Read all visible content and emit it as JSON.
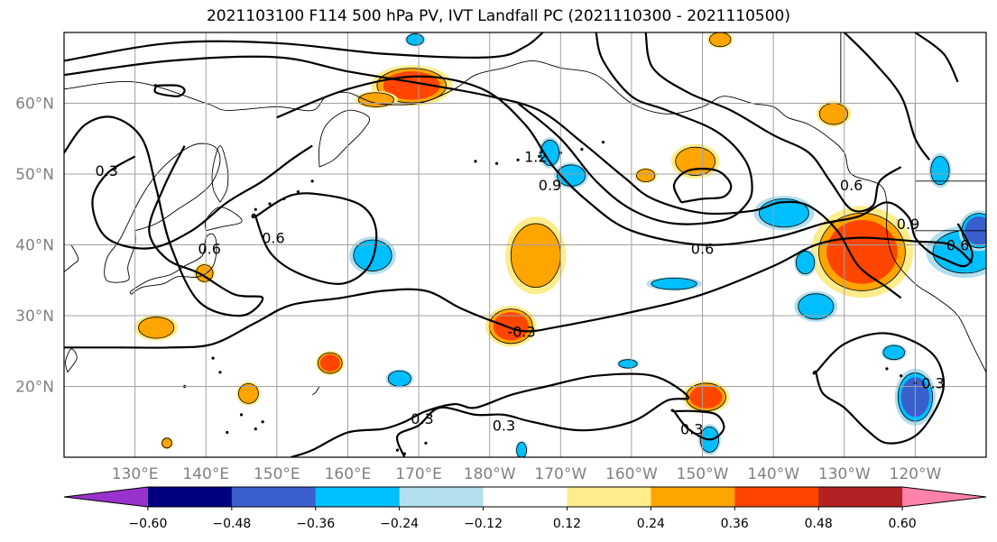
{
  "chart_data": {
    "type": "map-contour",
    "title": "2021103100 F114 500 hPa PV, IVT Landfall PC (2021110300 - 2021110500)",
    "lon_range": [
      120,
      250
    ],
    "lat_range": [
      10,
      70
    ],
    "lon_ticks": [
      130,
      140,
      150,
      160,
      170,
      180,
      190,
      200,
      210,
      220,
      230,
      240
    ],
    "lon_tick_labels": [
      "130°E",
      "140°E",
      "150°E",
      "160°E",
      "170°E",
      "180°W",
      "170°W",
      "160°W",
      "150°W",
      "140°W",
      "130°W",
      "120°W"
    ],
    "lat_ticks": [
      20,
      30,
      40,
      50,
      60
    ],
    "lat_tick_labels": [
      "20°N",
      "30°N",
      "40°N",
      "50°N",
      "60°N"
    ],
    "grid": true,
    "contour_labels": [
      {
        "text": "0.3",
        "lon": 126.0,
        "lat": 50.5
      },
      {
        "text": "0.6",
        "lon": 140.5,
        "lat": 39.5
      },
      {
        "text": "0.6",
        "lon": 149.5,
        "lat": 41.0
      },
      {
        "text": "0.9",
        "lon": 188.5,
        "lat": 48.5
      },
      {
        "text": "1.2",
        "lon": 186.5,
        "lat": 52.5
      },
      {
        "text": "0.6",
        "lon": 210.0,
        "lat": 39.5
      },
      {
        "text": "0.6",
        "lon": 231.0,
        "lat": 48.5
      },
      {
        "text": "0.9",
        "lon": 239.0,
        "lat": 43.0
      },
      {
        "text": "0.6",
        "lon": 246.0,
        "lat": 40.0
      },
      {
        "text": "-0.3",
        "lon": 184.5,
        "lat": 27.8
      },
      {
        "text": "0.3",
        "lon": 170.5,
        "lat": 15.5
      },
      {
        "text": "0.3",
        "lon": 182.0,
        "lat": 14.5
      },
      {
        "text": "0.3",
        "lon": 208.5,
        "lat": 14.0
      },
      {
        "text": "0.3",
        "lon": 242.5,
        "lat": 20.5
      }
    ],
    "filled_regions": [
      {
        "lon": 169.0,
        "lat": 62.5,
        "rx": 4.0,
        "ry": 2.0,
        "value": 0.36
      },
      {
        "lon": 164.0,
        "lat": 60.5,
        "rx": 2.5,
        "ry": 1.0,
        "value": 0.24
      },
      {
        "lon": 186.5,
        "lat": 38.5,
        "rx": 3.5,
        "ry": 4.5,
        "value": 0.24
      },
      {
        "lon": 183.0,
        "lat": 28.5,
        "rx": 2.5,
        "ry": 2.0,
        "value": 0.36
      },
      {
        "lon": 133.0,
        "lat": 28.3,
        "rx": 2.5,
        "ry": 1.5,
        "value": 0.24
      },
      {
        "lon": 157.5,
        "lat": 23.3,
        "rx": 1.4,
        "ry": 1.2,
        "value": 0.36
      },
      {
        "lon": 146.0,
        "lat": 19.0,
        "rx": 1.4,
        "ry": 1.4,
        "value": 0.24
      },
      {
        "lon": 210.5,
        "lat": 18.5,
        "rx": 2.3,
        "ry": 1.6,
        "value": 0.36
      },
      {
        "lon": 202.0,
        "lat": 49.8,
        "rx": 1.3,
        "ry": 0.9,
        "value": 0.24
      },
      {
        "lon": 209.0,
        "lat": 51.8,
        "rx": 2.8,
        "ry": 2.0,
        "value": 0.24
      },
      {
        "lon": 228.5,
        "lat": 58.5,
        "rx": 2.0,
        "ry": 1.5,
        "value": 0.24
      },
      {
        "lon": 212.5,
        "lat": 69.0,
        "rx": 1.5,
        "ry": 1.0,
        "value": 0.24
      },
      {
        "lon": 139.8,
        "lat": 36.0,
        "rx": 1.2,
        "ry": 1.2,
        "value": 0.24
      },
      {
        "lon": 134.5,
        "lat": 12.0,
        "rx": 0.7,
        "ry": 0.7,
        "value": 0.24
      },
      {
        "lon": 232.5,
        "lat": 39.0,
        "rx": 5.0,
        "ry": 4.5,
        "value": 0.36
      },
      {
        "lon": 188.5,
        "lat": 53.0,
        "rx": 1.3,
        "ry": 1.8,
        "value": -0.24
      },
      {
        "lon": 191.5,
        "lat": 49.8,
        "rx": 2.0,
        "ry": 1.5,
        "value": -0.24
      },
      {
        "lon": 221.5,
        "lat": 44.5,
        "rx": 3.5,
        "ry": 2.0,
        "value": -0.24
      },
      {
        "lon": 163.5,
        "lat": 38.5,
        "rx": 2.7,
        "ry": 2.2,
        "value": -0.24
      },
      {
        "lon": 206.0,
        "lat": 34.5,
        "rx": 3.2,
        "ry": 0.8,
        "value": -0.24
      },
      {
        "lon": 224.5,
        "lat": 37.5,
        "rx": 1.3,
        "ry": 1.6,
        "value": -0.24
      },
      {
        "lon": 226.0,
        "lat": 31.3,
        "rx": 2.5,
        "ry": 1.8,
        "value": -0.24
      },
      {
        "lon": 167.3,
        "lat": 21.1,
        "rx": 1.6,
        "ry": 1.1,
        "value": -0.24
      },
      {
        "lon": 237.0,
        "lat": 24.8,
        "rx": 1.5,
        "ry": 1.0,
        "value": -0.24
      },
      {
        "lon": 247.0,
        "lat": 39.0,
        "rx": 4.5,
        "ry": 3.0,
        "value": -0.24
      },
      {
        "lon": 249.0,
        "lat": 42.0,
        "rx": 2.0,
        "ry": 2.0,
        "value": -0.36
      },
      {
        "lon": 243.5,
        "lat": 50.5,
        "rx": 1.3,
        "ry": 2.0,
        "value": -0.24
      },
      {
        "lon": 240.0,
        "lat": 18.5,
        "rx": 2.0,
        "ry": 2.8,
        "value": -0.36
      },
      {
        "lon": 211.0,
        "lat": 12.5,
        "rx": 1.3,
        "ry": 1.8,
        "value": -0.24
      },
      {
        "lon": 199.5,
        "lat": 23.2,
        "rx": 1.3,
        "ry": 0.6,
        "value": -0.24
      },
      {
        "lon": 169.5,
        "lat": 69.0,
        "rx": 1.2,
        "ry": 0.8,
        "value": -0.24
      },
      {
        "lon": 184.5,
        "lat": 11.0,
        "rx": 0.7,
        "ry": 1.1,
        "value": -0.24
      }
    ],
    "colorbar": {
      "ticks": [
        -0.6,
        -0.48,
        -0.36,
        -0.24,
        -0.12,
        0.12,
        0.24,
        0.36,
        0.48,
        0.6
      ],
      "tick_labels": [
        "−0.60",
        "−0.48",
        "−0.36",
        "−0.24",
        "−0.12",
        "0.12",
        "0.24",
        "0.36",
        "0.48",
        "0.60"
      ],
      "colors": [
        "#9932cc",
        "#000080",
        "#3a5fcd",
        "#00bfff",
        "#b2dfee",
        "#ffffff",
        "#ffec8b",
        "#ffa500",
        "#ff4500",
        "#b22222",
        "#ff82ab"
      ],
      "extend": "both"
    }
  }
}
